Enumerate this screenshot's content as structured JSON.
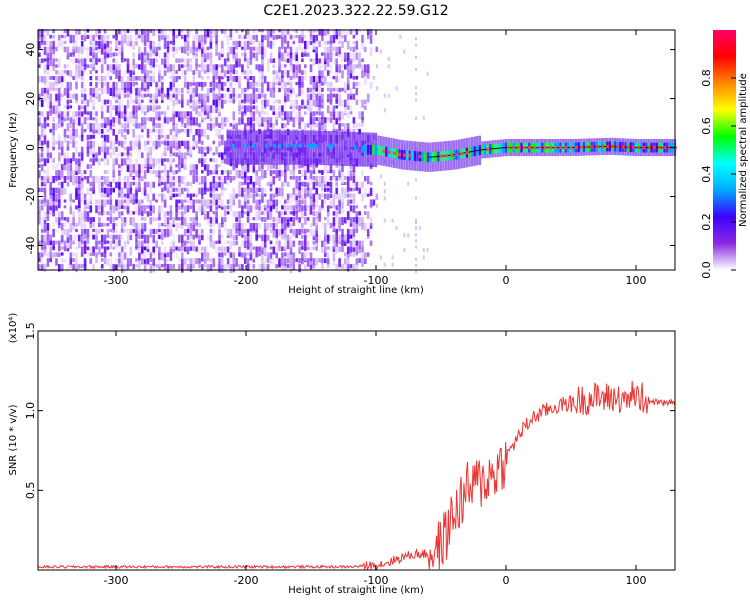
{
  "chart_data": [
    {
      "type": "heatmap",
      "title": "C2E1.2023.322.22.59.G12",
      "xlabel": "Height of straight line (km)",
      "ylabel": "Frequency (Hz)",
      "xlim": [
        -360,
        130
      ],
      "ylim": [
        -50,
        48
      ],
      "xticks": [
        -300,
        -200,
        -100,
        0,
        100
      ],
      "yticks": [
        -40,
        -20,
        0,
        20,
        40
      ],
      "colorbar": {
        "label": "Normalized spectral amplitude",
        "range": [
          0,
          1
        ],
        "ticks": [
          "0.0",
          "0.2",
          "0.4",
          "0.6",
          "0.8"
        ],
        "colors": [
          "#ffffff",
          "#8a2be2",
          "#3b00ff",
          "#00aaff",
          "#00ffff",
          "#00ff00",
          "#ffff00",
          "#ff8800",
          "#ff0000",
          "#ff0066"
        ]
      },
      "ridge": {
        "x": [
          -360,
          -300,
          -250,
          -210,
          -150,
          -100,
          -80,
          -60,
          -40,
          -20,
          0,
          20,
          50,
          80,
          100,
          130
        ],
        "y": [
          0,
          0,
          0,
          0,
          0,
          -1,
          -3,
          -4,
          -3,
          -1,
          0,
          0,
          0,
          0.5,
          0,
          0
        ]
      }
    },
    {
      "type": "line",
      "xlabel": "Height of straight line (km)",
      "ylabel": "SNR (10 * v/v)",
      "yscale_label": "(x10⁴)",
      "xlim": [
        -360,
        130
      ],
      "ylim": [
        0,
        1.5
      ],
      "xticks": [
        -300,
        -200,
        -100,
        0,
        100
      ],
      "yticks": [
        "0.5",
        "1.0",
        "1.5"
      ],
      "color": "#ee3333",
      "series": [
        {
          "x": [
            -360,
            -300,
            -250,
            -200,
            -150,
            -120,
            -100,
            -90,
            -80,
            -70,
            -60,
            -50,
            -40,
            -30,
            -20,
            -10,
            0,
            10,
            20,
            30,
            40,
            50,
            60,
            70,
            80,
            90,
            100,
            110,
            120,
            130
          ],
          "values": [
            0.02,
            0.02,
            0.02,
            0.02,
            0.02,
            0.02,
            0.03,
            0.05,
            0.08,
            0.1,
            0.1,
            0.15,
            0.35,
            0.5,
            0.55,
            0.6,
            0.7,
            0.85,
            0.95,
            1.0,
            1.03,
            1.05,
            1.07,
            1.08,
            1.08,
            1.08,
            1.1,
            1.06,
            1.05,
            1.05
          ]
        }
      ]
    }
  ]
}
